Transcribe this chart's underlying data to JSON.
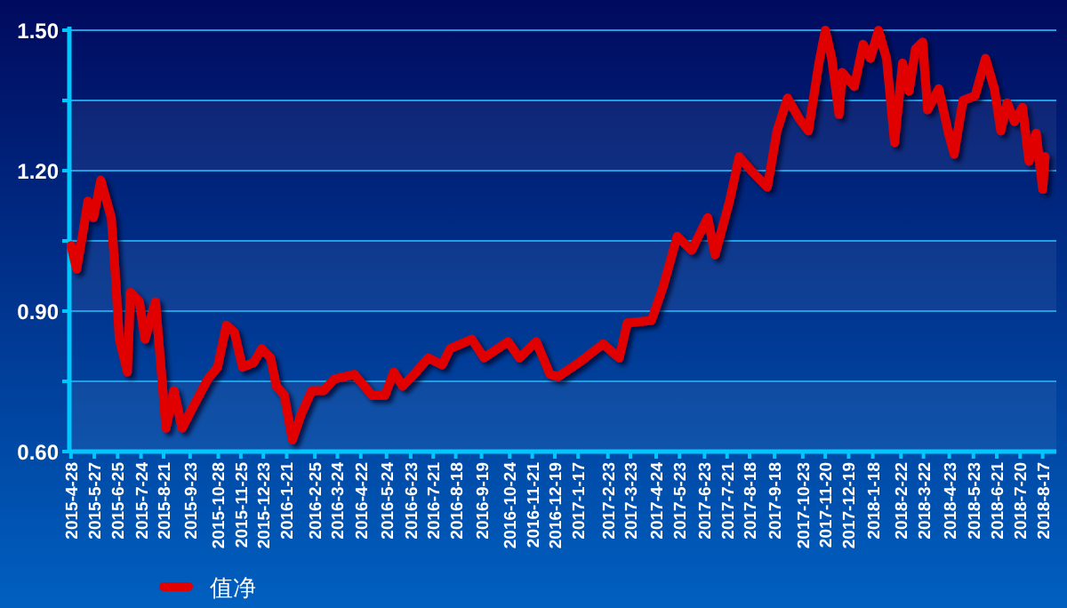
{
  "chart_data": {
    "type": "line",
    "x": [
      "2015-04-28",
      "2015-05-05",
      "2015-05-12",
      "2015-05-19",
      "2015-05-26",
      "2015-06-04",
      "2015-06-17",
      "2015-06-22",
      "2015-06-27",
      "2015-07-07",
      "2015-07-11",
      "2015-07-22",
      "2015-07-29",
      "2015-08-11",
      "2015-08-24",
      "2015-09-03",
      "2015-09-13",
      "2015-09-28",
      "2015-10-15",
      "2015-10-27",
      "2015-11-07",
      "2015-11-17",
      "2015-11-27",
      "2015-12-11",
      "2015-12-21",
      "2016-01-01",
      "2016-01-08",
      "2016-01-18",
      "2016-01-28",
      "2016-02-08",
      "2016-02-21",
      "2016-03-07",
      "2016-03-20",
      "2016-04-14",
      "2016-05-06",
      "2016-05-22",
      "2016-06-02",
      "2016-06-13",
      "2016-06-27",
      "2016-07-15",
      "2016-08-01",
      "2016-08-11",
      "2016-09-07",
      "2016-09-22",
      "2016-10-22",
      "2016-11-05",
      "2016-11-26",
      "2016-12-13",
      "2016-12-23",
      "2017-01-18",
      "2017-02-17",
      "2017-03-09",
      "2017-03-19",
      "2017-04-18",
      "2017-05-03",
      "2017-05-20",
      "2017-06-07",
      "2017-06-27",
      "2017-07-06",
      "2017-07-24",
      "2017-08-05",
      "2017-08-20",
      "2017-09-09",
      "2017-09-21",
      "2017-10-04",
      "2017-10-19",
      "2017-10-30",
      "2017-11-12",
      "2017-11-20",
      "2017-11-28",
      "2017-12-07",
      "2017-12-11",
      "2017-12-26",
      "2018-01-06",
      "2018-01-15",
      "2018-01-25",
      "2018-02-04",
      "2018-02-14",
      "2018-02-24",
      "2018-03-04",
      "2018-03-12",
      "2018-03-21",
      "2018-03-27",
      "2018-04-10",
      "2018-04-22",
      "2018-04-29",
      "2018-05-10",
      "2018-05-25",
      "2018-06-07",
      "2018-06-18",
      "2018-06-26",
      "2018-07-04",
      "2018-07-13",
      "2018-07-23",
      "2018-07-31",
      "2018-08-09",
      "2018-08-17",
      "2018-08-20"
    ],
    "series": [
      {
        "name": "值净",
        "color": "#e00000",
        "values": [
          1.04,
          0.99,
          1.06,
          1.135,
          1.1,
          1.18,
          1.1,
          0.98,
          0.84,
          0.77,
          0.94,
          0.92,
          0.84,
          0.92,
          0.65,
          0.73,
          0.65,
          0.7,
          0.755,
          0.78,
          0.87,
          0.855,
          0.78,
          0.79,
          0.82,
          0.8,
          0.74,
          0.72,
          0.625,
          0.68,
          0.73,
          0.73,
          0.755,
          0.765,
          0.72,
          0.72,
          0.77,
          0.74,
          0.765,
          0.8,
          0.785,
          0.82,
          0.84,
          0.8,
          0.835,
          0.8,
          0.835,
          0.765,
          0.76,
          0.79,
          0.83,
          0.8,
          0.875,
          0.88,
          0.955,
          1.06,
          1.03,
          1.1,
          1.02,
          1.135,
          1.23,
          1.2,
          1.165,
          1.285,
          1.355,
          1.31,
          1.285,
          1.43,
          1.5,
          1.44,
          1.32,
          1.41,
          1.38,
          1.47,
          1.44,
          1.5,
          1.44,
          1.26,
          1.43,
          1.37,
          1.46,
          1.475,
          1.33,
          1.375,
          1.28,
          1.235,
          1.35,
          1.36,
          1.44,
          1.375,
          1.285,
          1.345,
          1.305,
          1.335,
          1.22,
          1.28,
          1.16,
          1.23
        ]
      }
    ],
    "xlim": [
      "2015-04-26",
      "2018-09-03"
    ],
    "ylim": [
      0.6,
      1.5
    ],
    "yticks": [
      {
        "value": 0.6,
        "label": "0.60"
      },
      {
        "value": 0.75,
        "label": null
      },
      {
        "value": 0.9,
        "label": "0.90"
      },
      {
        "value": 1.05,
        "label": null
      },
      {
        "value": 1.2,
        "label": "1.20"
      },
      {
        "value": 1.35,
        "label": null
      },
      {
        "value": 1.5,
        "label": "1.50"
      }
    ],
    "xticks": [
      {
        "value": "2015-04-28",
        "label": "2015-4-28"
      },
      {
        "value": "2015-05-27",
        "label": "2015-5-27"
      },
      {
        "value": "2015-06-25",
        "label": "2015-6-25"
      },
      {
        "value": "2015-07-24",
        "label": "2015-7-24"
      },
      {
        "value": "2015-08-21",
        "label": "2015-8-21"
      },
      {
        "value": "2015-09-23",
        "label": "2015-9-23"
      },
      {
        "value": "2015-10-28",
        "label": "2015-10-28"
      },
      {
        "value": "2015-11-25",
        "label": "2015-11-25"
      },
      {
        "value": "2015-12-23",
        "label": "2015-12-23"
      },
      {
        "value": "2016-01-21",
        "label": "2016-1-21"
      },
      {
        "value": "2016-02-25",
        "label": "2016-2-25"
      },
      {
        "value": "2016-03-24",
        "label": "2016-3-24"
      },
      {
        "value": "2016-04-22",
        "label": "2016-4-22"
      },
      {
        "value": "2016-05-24",
        "label": "2016-5-24"
      },
      {
        "value": "2016-06-23",
        "label": "2016-6-23"
      },
      {
        "value": "2016-07-21",
        "label": "2016-7-21"
      },
      {
        "value": "2016-08-18",
        "label": "2016-8-18"
      },
      {
        "value": "2016-09-19",
        "label": "2016-9-19"
      },
      {
        "value": "2016-10-24",
        "label": "2016-10-24"
      },
      {
        "value": "2016-11-21",
        "label": "2016-11-21"
      },
      {
        "value": "2016-12-19",
        "label": "2016-12-19"
      },
      {
        "value": "2017-01-17",
        "label": "2017-1-17"
      },
      {
        "value": "2017-02-23",
        "label": "2017-2-23"
      },
      {
        "value": "2017-03-23",
        "label": "2017-3-23"
      },
      {
        "value": "2017-04-24",
        "label": "2017-4-24"
      },
      {
        "value": "2017-05-23",
        "label": "2017-5-23"
      },
      {
        "value": "2017-06-23",
        "label": "2017-6-23"
      },
      {
        "value": "2017-07-21",
        "label": "2017-7-21"
      },
      {
        "value": "2017-08-18",
        "label": "2017-8-18"
      },
      {
        "value": "2017-09-18",
        "label": "2017-9-18"
      },
      {
        "value": "2017-10-23",
        "label": "2017-10-23"
      },
      {
        "value": "2017-11-20",
        "label": "2017-11-20"
      },
      {
        "value": "2017-12-19",
        "label": "2017-12-19"
      },
      {
        "value": "2018-01-18",
        "label": "2018-1-18"
      },
      {
        "value": "2018-02-22",
        "label": "2018-2-22"
      },
      {
        "value": "2018-03-22",
        "label": "2018-3-22"
      },
      {
        "value": "2018-04-23",
        "label": "2018-4-23"
      },
      {
        "value": "2018-05-23",
        "label": "2018-5-23"
      },
      {
        "value": "2018-06-21",
        "label": "2018-6-21"
      },
      {
        "value": "2018-07-20",
        "label": "2018-7-20"
      },
      {
        "value": "2018-08-17",
        "label": "2018-8-17"
      }
    ],
    "grid": "y",
    "legend": "bottom left"
  }
}
